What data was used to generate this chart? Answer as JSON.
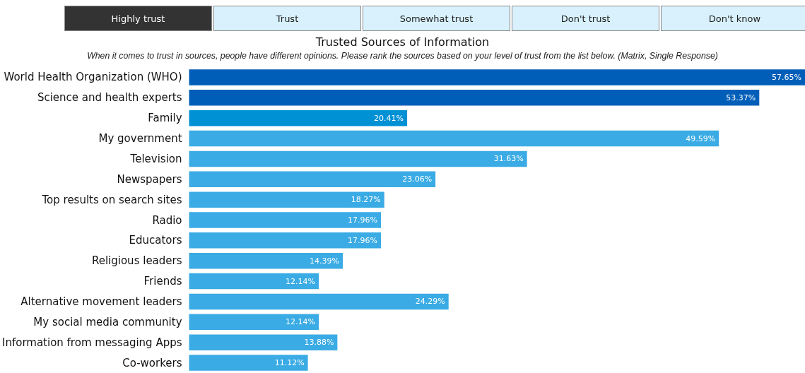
{
  "chart_data": {
    "type": "bar",
    "orientation": "horizontal",
    "title": "Trusted Sources of Information",
    "subtitle": "When it comes to trust in sources, people have different opinions. Please rank the sources based on your level of trust from the list below. (Matrix, Single Response)",
    "annotations": [
      "Highly trust",
      "Trust",
      "Somewhat trust",
      "Don't trust",
      "Don't know"
    ],
    "categories": [
      "World Health Organization (WHO)",
      "Science and health experts",
      "Family",
      "My government",
      "Television",
      "Newspapers",
      "Top results on search sites",
      "Radio",
      "Educators",
      "Religious leaders",
      "Friends",
      "Alternative movement leaders",
      "My social media community",
      "Information from messaging Apps",
      "Co-workers"
    ],
    "values": [
      57.65,
      53.37,
      20.41,
      49.59,
      31.63,
      23.06,
      18.27,
      17.96,
      17.96,
      14.39,
      12.14,
      24.29,
      12.14,
      13.88,
      11.12
    ],
    "value_labels": [
      "57.65%",
      "53.37%",
      "20.41%",
      "49.59%",
      "31.63%",
      "23.06%",
      "18.27%",
      "17.96%",
      "17.96%",
      "14.39%",
      "12.14%",
      "24.29%",
      "12.14%",
      "13.88%",
      "11.12%"
    ],
    "colors": [
      "#005eb8",
      "#005eb8",
      "#0090d4",
      "#3aabe4",
      "#3aabe4",
      "#3aabe4",
      "#3aabe4",
      "#3aabe4",
      "#3aabe4",
      "#3aabe4",
      "#3aabe4",
      "#3aabe4",
      "#3aabe4",
      "#3aabe4",
      "#3aabe4"
    ]
  }
}
